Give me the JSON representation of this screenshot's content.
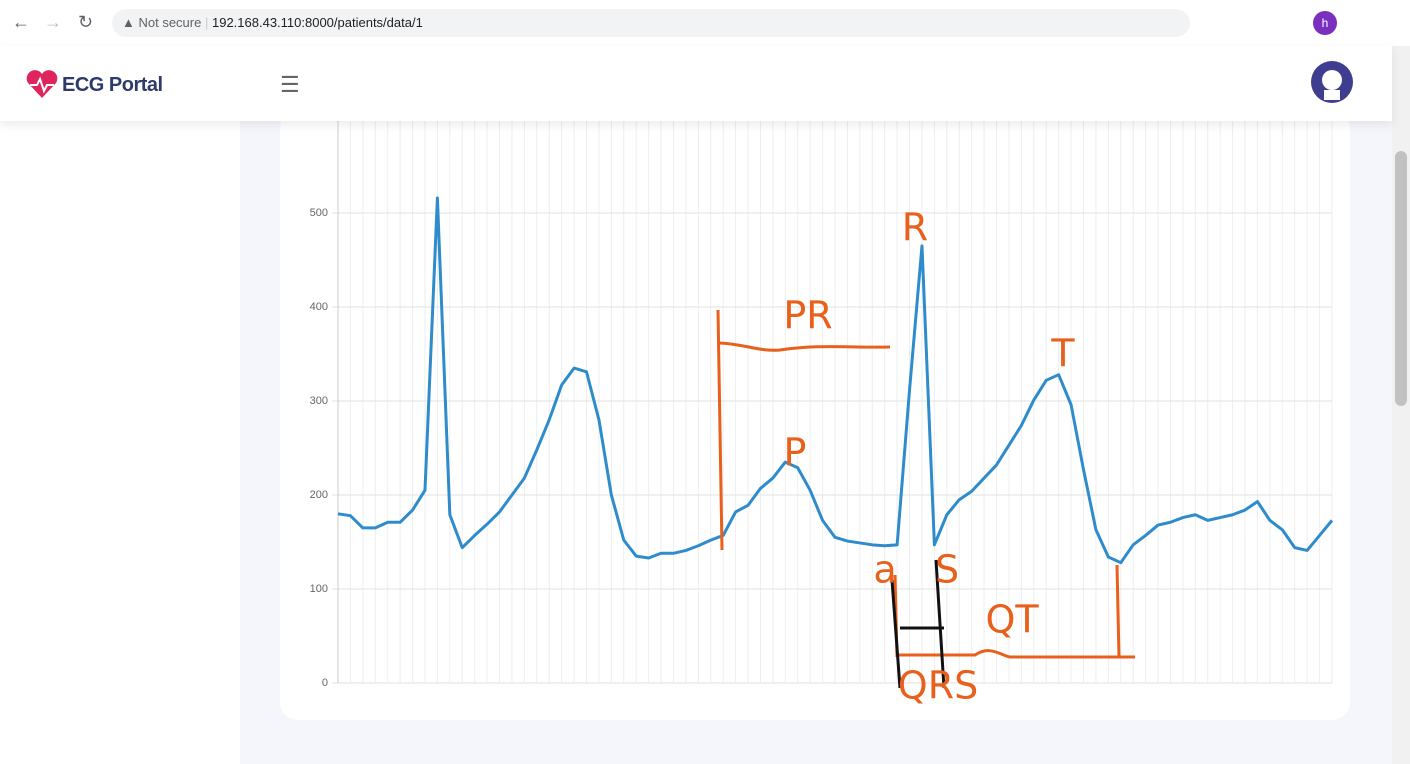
{
  "browser": {
    "security": "Not secure",
    "url": "192.168.43.110:8000/patients/data/1",
    "profile": "h"
  },
  "app": {
    "brand": "ECG Portal"
  },
  "chart_data": {
    "type": "line",
    "series": [
      {
        "name": "ECG",
        "color": "#2f8ccc",
        "values": [
          180,
          178,
          165,
          165,
          171,
          171,
          184,
          205,
          516,
          179,
          144,
          157,
          169,
          182,
          200,
          218,
          248,
          280,
          317,
          335,
          331,
          280,
          200,
          152,
          135,
          133,
          138,
          138,
          141,
          146,
          152,
          157,
          182,
          189,
          207,
          218,
          235,
          229,
          205,
          173,
          155,
          151,
          149,
          147,
          146,
          147,
          312,
          465,
          147,
          179,
          195,
          204,
          218,
          232,
          253,
          274,
          301,
          322,
          328,
          296,
          227,
          163,
          134,
          128,
          147,
          157,
          168,
          171,
          176,
          179,
          173,
          176,
          179,
          184,
          193,
          173,
          163,
          144,
          141,
          157,
          173
        ]
      }
    ],
    "ylim": [
      0,
      600
    ],
    "yticks": [
      0,
      100,
      200,
      300,
      400,
      500
    ],
    "grid": true,
    "annotations": [
      "R",
      "PR",
      "T",
      "P",
      "a",
      "S",
      "QT",
      "QRS"
    ]
  }
}
